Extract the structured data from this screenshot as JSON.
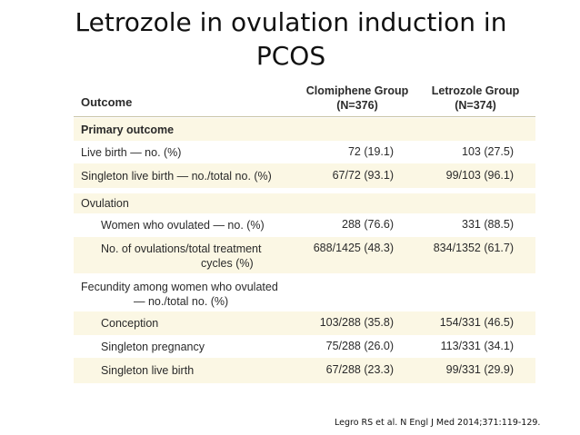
{
  "slide": {
    "title": "Letrozole in ovulation induction in PCOS",
    "citation": "Legro RS et al. N Engl J Med 2014;371:119-129."
  },
  "table": {
    "header": {
      "outcome": "Outcome",
      "group1_line1": "Clomiphene Group",
      "group1_line2": "(N=376)",
      "group2_line1": "Letrozole Group",
      "group2_line2": "(N=374)"
    },
    "rows": [
      {
        "label": "Primary outcome",
        "v1": "",
        "v2": ""
      },
      {
        "label": "Live birth — no. (%)",
        "v1": "72 (19.1)",
        "v2": "103 (27.5)"
      },
      {
        "label": "Singleton live birth — no./total no. (%)",
        "v1": "67/72 (93.1)",
        "v2": "99/103 (96.1)"
      },
      {
        "label": "Ovulation",
        "v1": "",
        "v2": ""
      },
      {
        "label": "Women who ovulated — no. (%)",
        "v1": "288 (76.6)",
        "v2": "331 (88.5)"
      },
      {
        "label_line1": "No. of ovulations/total treatment",
        "label_line2": "cycles (%)",
        "v1": "688/1425 (48.3)",
        "v2": "834/1352 (61.7)"
      },
      {
        "label_line1": "Fecundity among women who ovulated",
        "label_line2": "— no./total no. (%)",
        "v1": "",
        "v2": ""
      },
      {
        "label": "Conception",
        "v1": "103/288 (35.8)",
        "v2": "154/331 (46.5)"
      },
      {
        "label": "Singleton pregnancy",
        "v1": "75/288 (26.0)",
        "v2": "113/331 (34.1)"
      },
      {
        "label": "Singleton live birth",
        "v1": "67/288 (23.3)",
        "v2": "99/331 (29.9)"
      }
    ]
  },
  "colors": {
    "row_cream": "#fbf7e4",
    "header_rule": "#c9c4a6",
    "text": "#2a2a2a"
  }
}
